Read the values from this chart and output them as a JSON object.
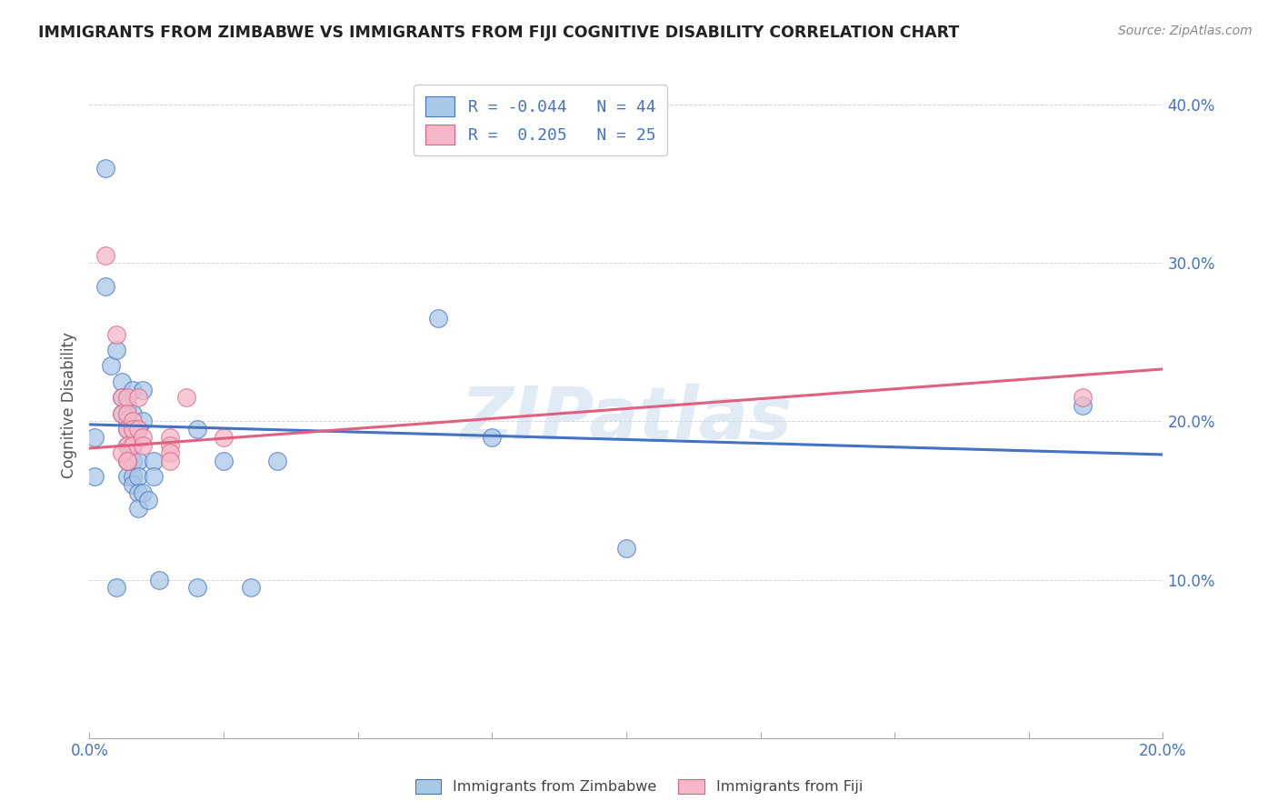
{
  "title": "IMMIGRANTS FROM ZIMBABWE VS IMMIGRANTS FROM FIJI COGNITIVE DISABILITY CORRELATION CHART",
  "source": "Source: ZipAtlas.com",
  "ylabel": "Cognitive Disability",
  "color_zim": "#a8c8e8",
  "color_fiji": "#f4b8c8",
  "line_color_zim": "#4472c4",
  "line_color_fiji": "#e06080",
  "watermark": "ZIPatlas",
  "legend_r_zim": "-0.044",
  "legend_n_zim": "44",
  "legend_r_fiji": "0.205",
  "legend_n_fiji": "25",
  "x_range": [
    0.0,
    0.2
  ],
  "y_range": [
    0.0,
    0.42
  ],
  "x_ticks": [
    0.0,
    0.025,
    0.05,
    0.075,
    0.1,
    0.125,
    0.15,
    0.175,
    0.2
  ],
  "y_ticks": [
    0.0,
    0.1,
    0.2,
    0.3,
    0.4
  ],
  "y_tick_labels": [
    "",
    "10.0%",
    "20.0%",
    "30.0%",
    "40.0%"
  ],
  "zim_points": [
    [
      0.001,
      0.19
    ],
    [
      0.003,
      0.36
    ],
    [
      0.003,
      0.285
    ],
    [
      0.004,
      0.235
    ],
    [
      0.005,
      0.245
    ],
    [
      0.006,
      0.225
    ],
    [
      0.006,
      0.215
    ],
    [
      0.006,
      0.205
    ],
    [
      0.007,
      0.21
    ],
    [
      0.007,
      0.2
    ],
    [
      0.007,
      0.195
    ],
    [
      0.007,
      0.185
    ],
    [
      0.007,
      0.175
    ],
    [
      0.007,
      0.165
    ],
    [
      0.008,
      0.22
    ],
    [
      0.008,
      0.205
    ],
    [
      0.008,
      0.195
    ],
    [
      0.008,
      0.185
    ],
    [
      0.008,
      0.175
    ],
    [
      0.008,
      0.165
    ],
    [
      0.008,
      0.16
    ],
    [
      0.009,
      0.195
    ],
    [
      0.009,
      0.175
    ],
    [
      0.009,
      0.165
    ],
    [
      0.009,
      0.155
    ],
    [
      0.009,
      0.145
    ],
    [
      0.01,
      0.22
    ],
    [
      0.01,
      0.2
    ],
    [
      0.01,
      0.155
    ],
    [
      0.011,
      0.15
    ],
    [
      0.012,
      0.175
    ],
    [
      0.012,
      0.165
    ],
    [
      0.013,
      0.1
    ],
    [
      0.02,
      0.195
    ],
    [
      0.02,
      0.095
    ],
    [
      0.025,
      0.175
    ],
    [
      0.03,
      0.095
    ],
    [
      0.035,
      0.175
    ],
    [
      0.001,
      0.165
    ],
    [
      0.005,
      0.095
    ],
    [
      0.065,
      0.265
    ],
    [
      0.075,
      0.19
    ],
    [
      0.1,
      0.12
    ],
    [
      0.185,
      0.21
    ]
  ],
  "fiji_points": [
    [
      0.003,
      0.305
    ],
    [
      0.005,
      0.255
    ],
    [
      0.006,
      0.215
    ],
    [
      0.006,
      0.205
    ],
    [
      0.007,
      0.215
    ],
    [
      0.007,
      0.205
    ],
    [
      0.007,
      0.195
    ],
    [
      0.007,
      0.185
    ],
    [
      0.007,
      0.175
    ],
    [
      0.008,
      0.2
    ],
    [
      0.008,
      0.195
    ],
    [
      0.008,
      0.185
    ],
    [
      0.009,
      0.215
    ],
    [
      0.009,
      0.195
    ],
    [
      0.01,
      0.19
    ],
    [
      0.01,
      0.185
    ],
    [
      0.015,
      0.19
    ],
    [
      0.015,
      0.185
    ],
    [
      0.015,
      0.18
    ],
    [
      0.018,
      0.215
    ],
    [
      0.025,
      0.19
    ],
    [
      0.185,
      0.215
    ],
    [
      0.006,
      0.18
    ],
    [
      0.007,
      0.175
    ],
    [
      0.015,
      0.175
    ]
  ],
  "zim_line": {
    "x0": 0.0,
    "y0": 0.198,
    "x1": 0.2,
    "y1": 0.179
  },
  "fiji_line": {
    "x0": 0.0,
    "y0": 0.183,
    "x1": 0.2,
    "y1": 0.233
  }
}
